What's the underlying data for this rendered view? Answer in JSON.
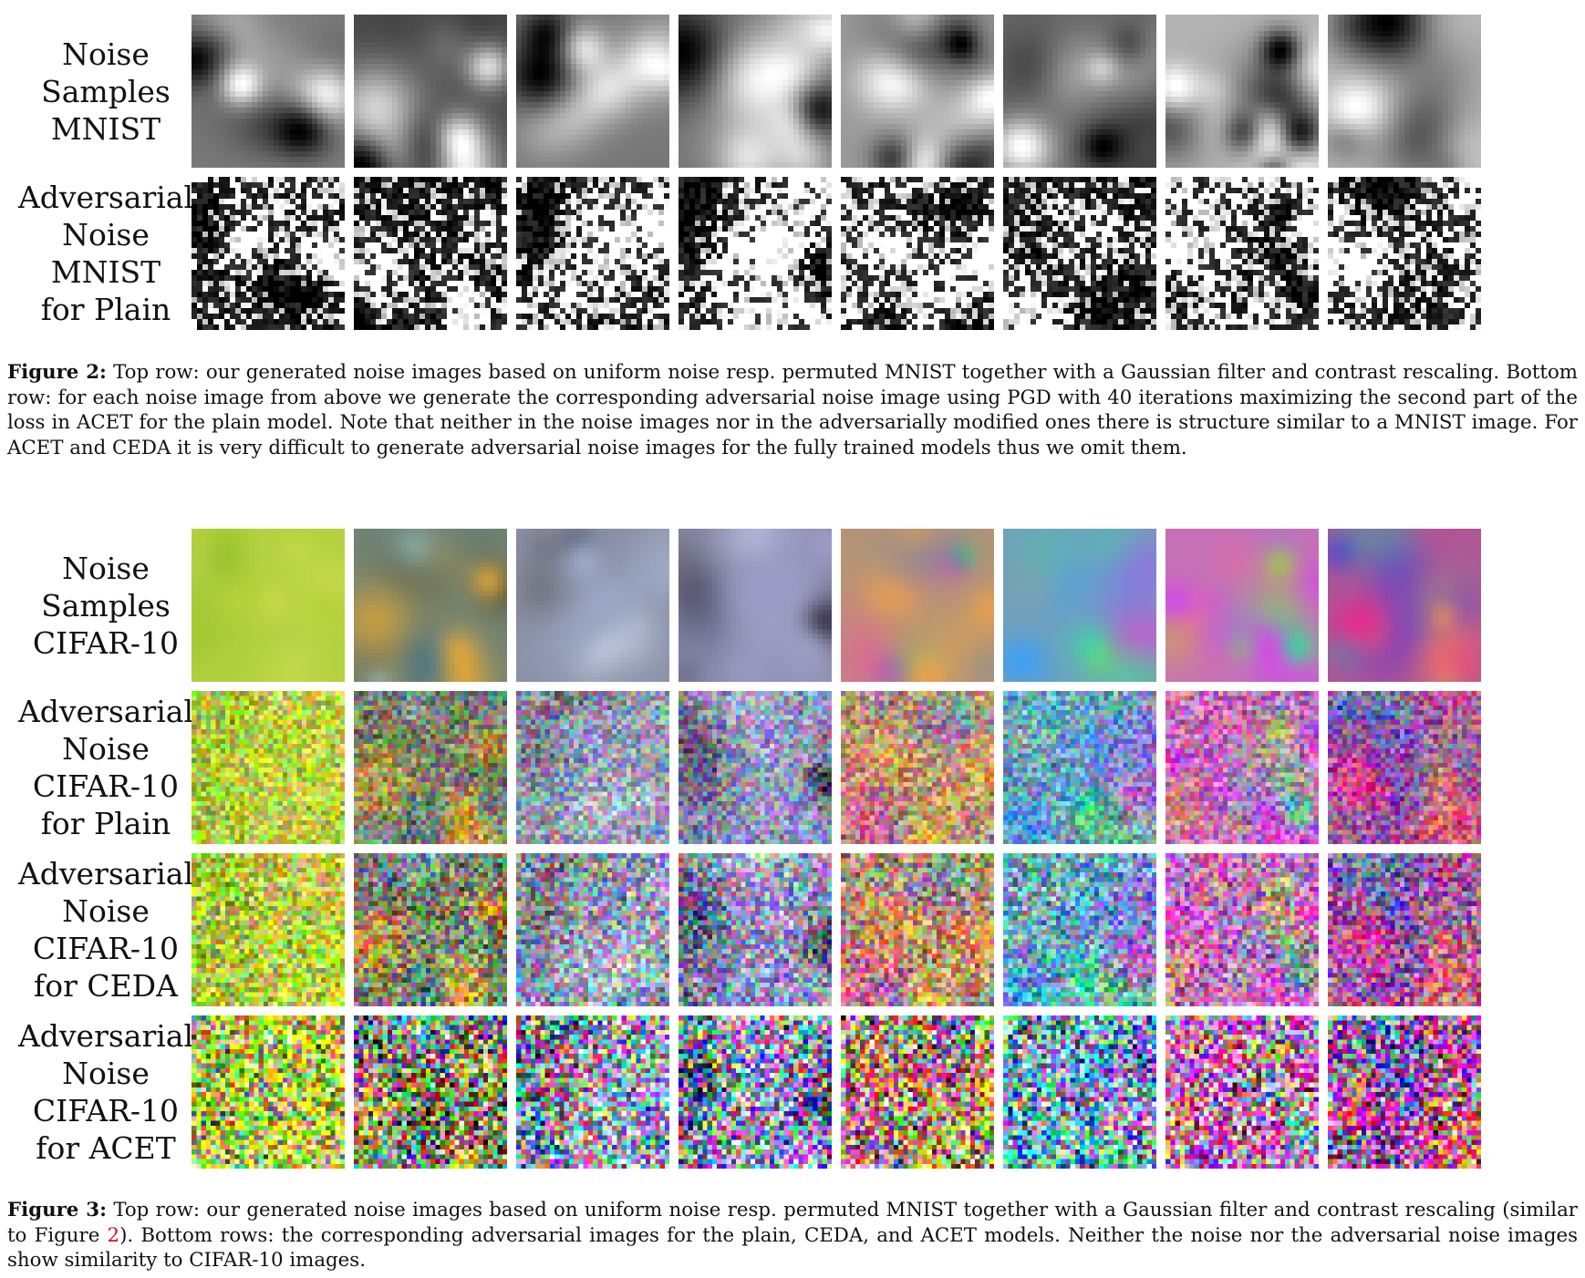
{
  "figure2": {
    "rows": [
      {
        "label_lines": [
          "Noise",
          "Samples",
          "MNIST"
        ],
        "kind": "mnist-noise",
        "tiles": [
          "mnist-noise-1",
          "mnist-noise-2",
          "mnist-noise-3",
          "mnist-noise-4",
          "mnist-noise-5",
          "mnist-noise-6",
          "mnist-noise-7",
          "mnist-noise-8"
        ]
      },
      {
        "label_lines": [
          "Adversarial",
          "Noise",
          "MNIST",
          "for Plain"
        ],
        "kind": "mnist-adv",
        "tiles": [
          "mnist-adv-plain-1",
          "mnist-adv-plain-2",
          "mnist-adv-plain-3",
          "mnist-adv-plain-4",
          "mnist-adv-plain-5",
          "mnist-adv-plain-6",
          "mnist-adv-plain-7",
          "mnist-adv-plain-8"
        ]
      }
    ],
    "caption_label": "Figure 2:",
    "caption_text": "Top row: our generated noise images based on uniform noise resp. permuted MNIST together with a Gaussian filter and contrast rescaling. Bottom row: for each noise image from above we generate the corresponding adversarial noise image using PGD with 40 iterations maximizing the second part of the loss in ACET for the plain model. Note that neither in the noise images nor in the adversarially modified ones there is structure similar to a MNIST image. For ACET and CEDA it is very difficult to generate adversarial noise images for the fully trained models thus we omit them."
  },
  "figure3": {
    "rows": [
      {
        "label_lines": [
          "Noise",
          "Samples",
          "CIFAR-10"
        ],
        "kind": "cifar-noise",
        "tiles": [
          "cifar-noise-1",
          "cifar-noise-2",
          "cifar-noise-3",
          "cifar-noise-4",
          "cifar-noise-5",
          "cifar-noise-6",
          "cifar-noise-7",
          "cifar-noise-8"
        ]
      },
      {
        "label_lines": [
          "Adversarial",
          "Noise",
          "CIFAR-10",
          "for Plain"
        ],
        "kind": "cifar-adv-plain",
        "tiles": [
          "cifar-adv-plain-1",
          "cifar-adv-plain-2",
          "cifar-adv-plain-3",
          "cifar-adv-plain-4",
          "cifar-adv-plain-5",
          "cifar-adv-plain-6",
          "cifar-adv-plain-7",
          "cifar-adv-plain-8"
        ]
      },
      {
        "label_lines": [
          "Adversarial",
          "Noise",
          "CIFAR-10",
          "for CEDA"
        ],
        "kind": "cifar-adv-ceda",
        "tiles": [
          "cifar-adv-ceda-1",
          "cifar-adv-ceda-2",
          "cifar-adv-ceda-3",
          "cifar-adv-ceda-4",
          "cifar-adv-ceda-5",
          "cifar-adv-ceda-6",
          "cifar-adv-ceda-7",
          "cifar-adv-ceda-8"
        ]
      },
      {
        "label_lines": [
          "Adversarial",
          "Noise",
          "CIFAR-10",
          "for ACET"
        ],
        "kind": "cifar-adv-acet",
        "tiles": [
          "cifar-adv-acet-1",
          "cifar-adv-acet-2",
          "cifar-adv-acet-3",
          "cifar-adv-acet-4",
          "cifar-adv-acet-5",
          "cifar-adv-acet-6",
          "cifar-adv-acet-7",
          "cifar-adv-acet-8"
        ]
      }
    ],
    "caption_label": "Figure 3:",
    "caption_text_before_ref": "Top row: our generated noise images based on uniform noise resp. permuted MNIST together with a Gaussian filter and contrast rescaling (similar to Figure ",
    "caption_ref": "2",
    "caption_text_after_ref": "). Bottom rows: the corresponding adversarial images for the plain, CEDA, and ACET models. Neither the noise nor the adversarial noise images show similarity to CIFAR-10 images.",
    "cifar_noise_palettes": [
      [
        "#b6d13a",
        "#8fbf2a",
        "#d2e05a"
      ],
      [
        "#d8a43a",
        "#6fa0b0",
        "#3a4a44"
      ],
      [
        "#9aa6c4",
        "#3a3a48",
        "#dfe4ee"
      ],
      [
        "#9a9cc6",
        "#2e2a3e",
        "#c6cde4"
      ],
      [
        "#e8a050",
        "#40c870",
        "#c040d0"
      ],
      [
        "#40a0f0",
        "#e050c0",
        "#50e080"
      ],
      [
        "#d050e0",
        "#40d0a0",
        "#f0a040"
      ],
      [
        "#e03090",
        "#3060d0",
        "#f0c040"
      ]
    ]
  }
}
